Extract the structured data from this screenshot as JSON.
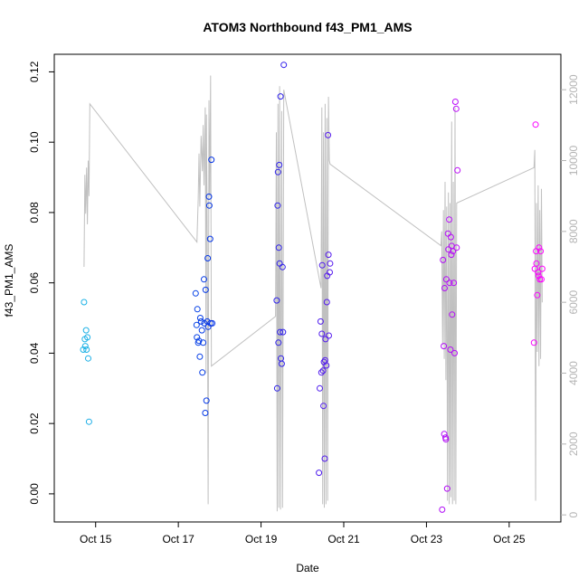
{
  "chart_data": {
    "type": "scatter",
    "title": "ATOM3 Northbound f43_PM1_AMS",
    "xlabel": "Date",
    "ylabel": "f43_PM1_AMS",
    "x_ticks": [
      {
        "label": "Oct 15",
        "x": 15
      },
      {
        "label": "Oct 17",
        "x": 17
      },
      {
        "label": "Oct 19",
        "x": 19
      },
      {
        "label": "Oct 21",
        "x": 21
      },
      {
        "label": "Oct 23",
        "x": 23
      },
      {
        "label": "Oct 25",
        "x": 25
      }
    ],
    "xlim": [
      14.0,
      26.25
    ],
    "ylim": [
      -0.008,
      0.125
    ],
    "y_ticks": [
      {
        "label": "0.00",
        "v": 0.0
      },
      {
        "label": "0.02",
        "v": 0.02
      },
      {
        "label": "0.04",
        "v": 0.04
      },
      {
        "label": "0.06",
        "v": 0.06
      },
      {
        "label": "0.08",
        "v": 0.08
      },
      {
        "label": "0.10",
        "v": 0.1
      },
      {
        "label": "0.12",
        "v": 0.12
      }
    ],
    "y2lim": [
      -200,
      13000
    ],
    "y2_ticks": [
      {
        "label": "0",
        "v": 0
      },
      {
        "label": "2000",
        "v": 2000
      },
      {
        "label": "4000",
        "v": 4000
      },
      {
        "label": "6000",
        "v": 6000
      },
      {
        "label": "8000",
        "v": 8000
      },
      {
        "label": "10000",
        "v": 10000
      },
      {
        "label": "12000",
        "v": 12000
      }
    ],
    "colors": {
      "start": "#1eb4e6",
      "end": "#ff00ff",
      "altitude_line": "#c0c0c0",
      "axis": "#000000",
      "y2_axis": "#b4b4b4"
    },
    "altitude_series": [
      [
        14.72,
        7000
      ],
      [
        14.74,
        9600
      ],
      [
        14.76,
        8500
      ],
      [
        14.78,
        9800
      ],
      [
        14.8,
        8200
      ],
      [
        14.82,
        10000
      ],
      [
        14.84,
        9000
      ],
      [
        14.86,
        11600
      ],
      [
        17.45,
        7700
      ],
      [
        17.48,
        8900
      ],
      [
        17.5,
        10200
      ],
      [
        17.52,
        8700
      ],
      [
        17.55,
        10700
      ],
      [
        17.58,
        9700
      ],
      [
        17.6,
        11000
      ],
      [
        17.62,
        9300
      ],
      [
        17.65,
        11500
      ],
      [
        17.67,
        4000
      ],
      [
        17.68,
        11300
      ],
      [
        17.7,
        8000
      ],
      [
        17.72,
        300
      ],
      [
        17.74,
        11700
      ],
      [
        17.76,
        9000
      ],
      [
        17.78,
        12400
      ],
      [
        17.8,
        4200
      ],
      [
        19.35,
        5600
      ],
      [
        19.37,
        10800
      ],
      [
        19.39,
        100
      ],
      [
        19.41,
        11600
      ],
      [
        19.43,
        200
      ],
      [
        19.45,
        12100
      ],
      [
        19.47,
        150
      ],
      [
        19.5,
        11400
      ],
      [
        19.52,
        200
      ],
      [
        19.55,
        12000
      ],
      [
        20.45,
        6400
      ],
      [
        20.47,
        11500
      ],
      [
        20.49,
        300
      ],
      [
        20.51,
        10800
      ],
      [
        20.53,
        200
      ],
      [
        20.55,
        11600
      ],
      [
        20.57,
        300
      ],
      [
        20.59,
        11200
      ],
      [
        20.61,
        400
      ],
      [
        20.63,
        11800
      ],
      [
        20.65,
        10000
      ],
      [
        20.67,
        9900
      ],
      [
        23.35,
        7600
      ],
      [
        23.37,
        8000
      ],
      [
        23.39,
        4800
      ],
      [
        23.41,
        8600
      ],
      [
        23.43,
        4400
      ],
      [
        23.45,
        9400
      ],
      [
        23.47,
        3800
      ],
      [
        23.49,
        8700
      ],
      [
        23.51,
        400
      ],
      [
        23.53,
        9100
      ],
      [
        23.55,
        300
      ],
      [
        23.57,
        8800
      ],
      [
        23.59,
        500
      ],
      [
        23.61,
        11100
      ],
      [
        23.63,
        300
      ],
      [
        23.65,
        9400
      ],
      [
        23.67,
        400
      ],
      [
        23.69,
        11500
      ],
      [
        23.71,
        300
      ],
      [
        23.73,
        8800
      ],
      [
        25.6,
        9800
      ],
      [
        25.62,
        10300
      ],
      [
        25.64,
        400
      ],
      [
        25.66,
        8800
      ],
      [
        25.68,
        4600
      ],
      [
        25.7,
        9300
      ],
      [
        25.72,
        4200
      ],
      [
        25.74,
        8600
      ],
      [
        25.76,
        4400
      ],
      [
        25.78,
        9200
      ],
      [
        25.8,
        6000
      ]
    ],
    "series": [
      {
        "name": "points",
        "x": [
          14.7,
          14.72,
          14.74,
          14.75,
          14.77,
          14.78,
          14.8,
          14.82,
          14.84,
          17.42,
          17.44,
          17.45,
          17.46,
          17.48,
          17.5,
          17.52,
          17.53,
          17.55,
          17.57,
          17.58,
          17.6,
          17.62,
          17.63,
          17.65,
          17.66,
          17.68,
          17.7,
          17.71,
          17.72,
          17.74,
          17.75,
          17.77,
          17.78,
          17.8,
          17.82,
          19.38,
          19.39,
          19.4,
          19.41,
          19.42,
          19.43,
          19.44,
          19.45,
          19.46,
          19.47,
          19.48,
          19.5,
          19.52,
          19.53,
          19.55,
          20.4,
          20.42,
          20.44,
          20.46,
          20.47,
          20.48,
          20.5,
          20.51,
          20.52,
          20.54,
          20.55,
          20.56,
          20.58,
          20.59,
          20.6,
          20.62,
          20.63,
          20.64,
          20.66,
          20.67,
          23.38,
          23.4,
          23.42,
          23.43,
          23.44,
          23.46,
          23.47,
          23.48,
          23.5,
          23.52,
          23.53,
          23.55,
          23.56,
          23.58,
          23.59,
          23.6,
          23.61,
          23.62,
          23.64,
          23.66,
          23.68,
          23.7,
          23.72,
          23.73,
          23.75,
          25.6,
          25.62,
          25.64,
          25.65,
          25.66,
          25.68,
          25.7,
          25.71,
          25.72,
          25.74,
          25.76,
          25.78,
          25.8
        ],
        "values": [
          0.041,
          0.0545,
          0.044,
          0.042,
          0.0465,
          0.041,
          0.0445,
          0.0385,
          0.0205,
          0.057,
          0.048,
          0.0445,
          0.0525,
          0.043,
          0.0435,
          0.039,
          0.05,
          0.049,
          0.0465,
          0.0345,
          0.043,
          0.061,
          0.0485,
          0.023,
          0.058,
          0.0265,
          0.049,
          0.067,
          0.0475,
          0.0845,
          0.082,
          0.0725,
          0.0485,
          0.095,
          0.0485,
          0.055,
          0.03,
          0.082,
          0.0915,
          0.043,
          0.07,
          0.0935,
          0.0655,
          0.046,
          0.113,
          0.0385,
          0.037,
          0.0645,
          0.046,
          0.122,
          0.006,
          0.03,
          0.049,
          0.0345,
          0.0455,
          0.065,
          0.035,
          0.025,
          0.0375,
          0.01,
          0.038,
          0.044,
          0.0365,
          0.0545,
          0.062,
          0.102,
          0.068,
          0.045,
          0.063,
          0.0655,
          -0.0045,
          0.0665,
          0.042,
          0.017,
          0.0585,
          0.016,
          0.0155,
          0.061,
          0.0015,
          0.074,
          0.0695,
          0.078,
          0.06,
          0.041,
          0.073,
          0.068,
          0.0705,
          0.051,
          0.069,
          0.06,
          0.04,
          0.1115,
          0.1095,
          0.07,
          0.092,
          0.043,
          0.064,
          0.105,
          0.069,
          0.0655,
          0.0565,
          0.063,
          0.062,
          0.07,
          0.061,
          0.069,
          0.061,
          0.064
        ]
      }
    ]
  }
}
